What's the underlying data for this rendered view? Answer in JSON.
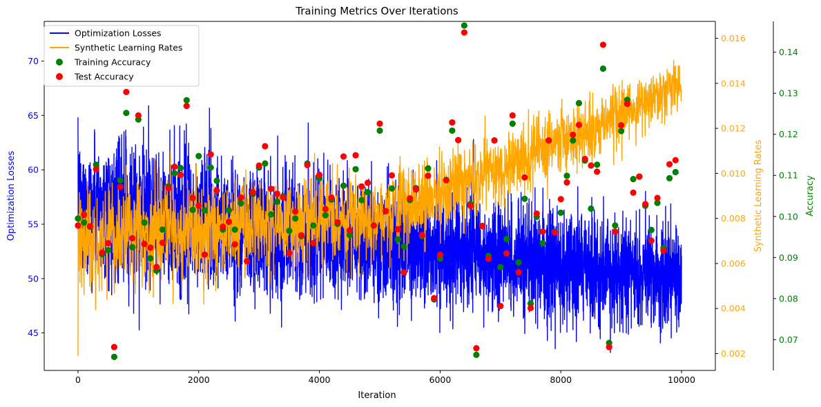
{
  "chart_data": {
    "type": "line",
    "title": "Training Metrics Over Iterations",
    "xlabel": "Iteration",
    "xlim": [
      -560,
      10560
    ],
    "x_ticks": [
      0,
      2000,
      4000,
      6000,
      8000,
      10000
    ],
    "grid": false,
    "legend_position": "top-left",
    "axes": {
      "losses": {
        "label": "Optimization Losses",
        "side": "left",
        "color": "#0000ff",
        "ylim": [
          41.55,
          73.65
        ],
        "ticks": [
          45,
          50,
          55,
          60,
          65,
          70
        ]
      },
      "learning_rate": {
        "label": "Synthetic Learning Rates",
        "side": "right",
        "color": "#ffa500",
        "ylim": [
          0.00125,
          0.01675
        ],
        "ticks": [
          0.002,
          0.004,
          0.006,
          0.008,
          0.01,
          0.012,
          0.014,
          0.016
        ],
        "tick_labels": [
          "0.002",
          "0.004",
          "0.006",
          "0.008",
          "0.010",
          "0.012",
          "0.014",
          "0.016"
        ]
      },
      "accuracy": {
        "label": "Accuracy",
        "side": "right-outer",
        "color": "#008000",
        "ylim": [
          0.0625,
          0.1475
        ],
        "ticks": [
          0.07,
          0.08,
          0.09,
          0.1,
          0.11,
          0.12,
          0.13,
          0.14
        ],
        "tick_labels": [
          "0.07",
          "0.08",
          "0.09",
          "0.10",
          "0.11",
          "0.12",
          "0.13",
          "0.14"
        ]
      }
    },
    "series": [
      {
        "name": "Optimization Losses",
        "kind": "line",
        "axis": "losses",
        "color": "#0000ff",
        "x_range": [
          0,
          10000
        ],
        "n_points": 10000,
        "mean_start": 56.5,
        "mean_end": 50.0,
        "noise_std_start": 3.0,
        "noise_std_end": 2.2,
        "min": 43.2,
        "max": 72.2
      },
      {
        "name": "Synthetic Learning Rates",
        "kind": "line",
        "axis": "learning_rate",
        "color": "#ffa500",
        "x_range": [
          0,
          10000
        ],
        "n_points": 10000,
        "mean_start": 0.007,
        "mean_mid": 0.0082,
        "mean_end": 0.014,
        "noise_std_start": 0.0012,
        "noise_std_end": 0.0006,
        "min": 0.0019,
        "max": 0.0162
      },
      {
        "name": "Training Accuracy",
        "kind": "scatter",
        "axis": "accuracy",
        "color": "#008000",
        "points": [
          [
            0,
            0.0995
          ],
          [
            100,
            0.0985
          ],
          [
            200,
            0.0975
          ],
          [
            300,
            0.1126
          ],
          [
            400,
            0.0908
          ],
          [
            500,
            0.0918
          ],
          [
            600,
            0.0658
          ],
          [
            700,
            0.1088
          ],
          [
            800,
            0.1252
          ],
          [
            900,
            0.0925
          ],
          [
            1000,
            0.1236
          ],
          [
            1100,
            0.0985
          ],
          [
            1200,
            0.0898
          ],
          [
            1300,
            0.0868
          ],
          [
            1400,
            0.0968
          ],
          [
            1500,
            0.1073
          ],
          [
            1600,
            0.1105
          ],
          [
            1700,
            0.1118
          ],
          [
            1800,
            0.1283
          ],
          [
            1900,
            0.1016
          ],
          [
            2000,
            0.1147
          ],
          [
            2100,
            0.1015
          ],
          [
            2200,
            0.1119
          ],
          [
            2300,
            0.1087
          ],
          [
            2400,
            0.0968
          ],
          [
            2500,
            0.1015
          ],
          [
            2600,
            0.0968
          ],
          [
            2700,
            0.1032
          ],
          [
            2800,
            0.0891
          ],
          [
            2900,
            0.1055
          ],
          [
            3000,
            0.1119
          ],
          [
            3100,
            0.1129
          ],
          [
            3200,
            0.1005
          ],
          [
            3300,
            0.1036
          ],
          [
            3400,
            0.1049
          ],
          [
            3500,
            0.0965
          ],
          [
            3600,
            0.0995
          ],
          [
            3700,
            0.0952
          ],
          [
            3800,
            0.1129
          ],
          [
            3900,
            0.0978
          ],
          [
            4000,
            0.1093
          ],
          [
            4100,
            0.1003
          ],
          [
            4200,
            0.1041
          ],
          [
            4300,
            0.0982
          ],
          [
            4400,
            0.1075
          ],
          [
            4500,
            0.0955
          ],
          [
            4600,
            0.1115
          ],
          [
            4700,
            0.104
          ],
          [
            4800,
            0.1059
          ],
          [
            4900,
            0.0978
          ],
          [
            5000,
            0.1209
          ],
          [
            5100,
            0.1013
          ],
          [
            5200,
            0.1068
          ],
          [
            5300,
            0.0944
          ],
          [
            5400,
            0.0927
          ],
          [
            5500,
            0.104
          ],
          [
            5600,
            0.1069
          ],
          [
            5700,
            0.0952
          ],
          [
            5800,
            0.1117
          ],
          [
            5900,
            0.0798
          ],
          [
            6000,
            0.0898
          ],
          [
            6100,
            0.1089
          ],
          [
            6200,
            0.1209
          ],
          [
            6300,
            0.1186
          ],
          [
            6400,
            0.1465
          ],
          [
            6500,
            0.103
          ],
          [
            6600,
            0.0663
          ],
          [
            6700,
            0.0977
          ],
          [
            6800,
            0.0904
          ],
          [
            6900,
            0.1185
          ],
          [
            7000,
            0.0877
          ],
          [
            7100,
            0.0945
          ],
          [
            7200,
            0.1226
          ],
          [
            7300,
            0.0888
          ],
          [
            7400,
            0.1043
          ],
          [
            7500,
            0.0788
          ],
          [
            7600,
            0.0999
          ],
          [
            7700,
            0.0935
          ],
          [
            7800,
            0.1185
          ],
          [
            7900,
            0.0963
          ],
          [
            8000,
            0.1009
          ],
          [
            8100,
            0.1099
          ],
          [
            8200,
            0.1185
          ],
          [
            8300,
            0.1276
          ],
          [
            8400,
            0.1136
          ],
          [
            8500,
            0.1019
          ],
          [
            8600,
            0.1126
          ],
          [
            8700,
            0.136
          ],
          [
            8800,
            0.0692
          ],
          [
            8900,
            0.0978
          ],
          [
            9000,
            0.1208
          ],
          [
            9100,
            0.1284
          ],
          [
            9200,
            0.1091
          ],
          [
            9300,
            0.1097
          ],
          [
            9400,
            0.1026
          ],
          [
            9500,
            0.0967
          ],
          [
            9600,
            0.1033
          ],
          [
            9700,
            0.0923
          ],
          [
            9800,
            0.1093
          ],
          [
            9900,
            0.1108
          ]
        ]
      },
      {
        "name": "Test Accuracy",
        "kind": "scatter",
        "axis": "accuracy",
        "color": "#ff0000",
        "points": [
          [
            0,
            0.0978
          ],
          [
            100,
            0.1004
          ],
          [
            200,
            0.0976
          ],
          [
            300,
            0.1115
          ],
          [
            400,
            0.0912
          ],
          [
            500,
            0.0935
          ],
          [
            600,
            0.0682
          ],
          [
            700,
            0.1072
          ],
          [
            800,
            0.1303
          ],
          [
            900,
            0.0947
          ],
          [
            1000,
            0.1246
          ],
          [
            1100,
            0.0933
          ],
          [
            1200,
            0.0924
          ],
          [
            1300,
            0.0877
          ],
          [
            1400,
            0.0936
          ],
          [
            1500,
            0.1069
          ],
          [
            1600,
            0.1121
          ],
          [
            1700,
            0.1101
          ],
          [
            1800,
            0.1269
          ],
          [
            1900,
            0.1045
          ],
          [
            2000,
            0.1026
          ],
          [
            2100,
            0.0907
          ],
          [
            2200,
            0.1151
          ],
          [
            2300,
            0.1063
          ],
          [
            2400,
            0.0975
          ],
          [
            2500,
            0.0987
          ],
          [
            2600,
            0.0932
          ],
          [
            2700,
            0.1046
          ],
          [
            2800,
            0.0891
          ],
          [
            2900,
            0.1059
          ],
          [
            3000,
            0.1124
          ],
          [
            3100,
            0.1171
          ],
          [
            3200,
            0.1067
          ],
          [
            3300,
            0.1055
          ],
          [
            3400,
            0.1046
          ],
          [
            3500,
            0.0911
          ],
          [
            3600,
            0.1012
          ],
          [
            3700,
            0.0954
          ],
          [
            3800,
            0.1125
          ],
          [
            3900,
            0.0935
          ],
          [
            4000,
            0.1101
          ],
          [
            4100,
            0.1018
          ],
          [
            4200,
            0.1046
          ],
          [
            4300,
            0.0986
          ],
          [
            4400,
            0.1146
          ],
          [
            4500,
            0.0966
          ],
          [
            4600,
            0.1149
          ],
          [
            4700,
            0.1073
          ],
          [
            4800,
            0.1082
          ],
          [
            4900,
            0.0978
          ],
          [
            5000,
            0.1226
          ],
          [
            5100,
            0.1013
          ],
          [
            5200,
            0.11
          ],
          [
            5300,
            0.0969
          ],
          [
            5400,
            0.0864
          ],
          [
            5500,
            0.1044
          ],
          [
            5600,
            0.1066
          ],
          [
            5700,
            0.0955
          ],
          [
            5800,
            0.1099
          ],
          [
            5900,
            0.0801
          ],
          [
            6000,
            0.0907
          ],
          [
            6100,
            0.1088
          ],
          [
            6200,
            0.1229
          ],
          [
            6300,
            0.1186
          ],
          [
            6400,
            0.1448
          ],
          [
            6500,
            0.1026
          ],
          [
            6600,
            0.0679
          ],
          [
            6700,
            0.0976
          ],
          [
            6800,
            0.0897
          ],
          [
            6900,
            0.1185
          ],
          [
            7000,
            0.0782
          ],
          [
            7100,
            0.091
          ],
          [
            7200,
            0.1246
          ],
          [
            7300,
            0.0864
          ],
          [
            7400,
            0.1095
          ],
          [
            7500,
            0.0777
          ],
          [
            7600,
            0.1007
          ],
          [
            7700,
            0.0963
          ],
          [
            7800,
            0.1185
          ],
          [
            7900,
            0.0961
          ],
          [
            8000,
            0.1042
          ],
          [
            8100,
            0.1083
          ],
          [
            8200,
            0.1199
          ],
          [
            8300,
            0.1223
          ],
          [
            8400,
            0.114
          ],
          [
            8500,
            0.1124
          ],
          [
            8600,
            0.1109
          ],
          [
            8700,
            0.1418
          ],
          [
            8800,
            0.0682
          ],
          [
            8900,
            0.0963
          ],
          [
            9000,
            0.1222
          ],
          [
            9100,
            0.1274
          ],
          [
            9200,
            0.1058
          ],
          [
            9300,
            0.1097
          ],
          [
            9400,
            0.103
          ],
          [
            9500,
            0.0941
          ],
          [
            9600,
            0.1045
          ],
          [
            9700,
            0.0917
          ],
          [
            9800,
            0.1127
          ],
          [
            9900,
            0.1137
          ]
        ]
      }
    ]
  }
}
